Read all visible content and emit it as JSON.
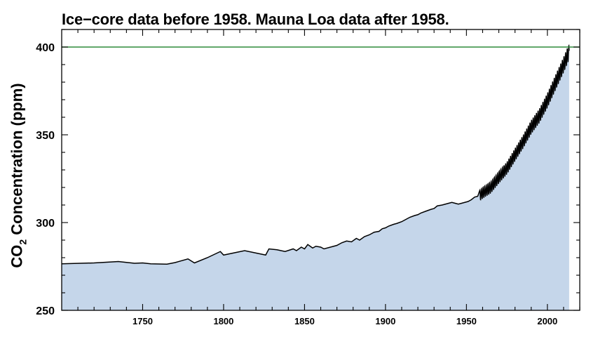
{
  "chart_data": {
    "type": "area",
    "title": "Ice−core data before 1958. Mauna Loa data after 1958.",
    "ylabel": {
      "prefix": "CO",
      "subscript": "2",
      "suffix": " Concentration (ppm)"
    },
    "xlabel": "",
    "xlim": [
      1700,
      2020
    ],
    "ylim": [
      250,
      410
    ],
    "xticks": [
      1750,
      1800,
      1850,
      1900,
      1950,
      2000
    ],
    "yticks": [
      250,
      300,
      350,
      400
    ],
    "reference_line": {
      "y": 400,
      "color": "#2e8b3a"
    },
    "fill_color": "#c5d6ea",
    "line_color": "#000000",
    "ice_core": {
      "x": [
        1700,
        1720,
        1735,
        1745,
        1750,
        1755,
        1765,
        1770,
        1778,
        1782,
        1790,
        1798,
        1800,
        1813,
        1826,
        1828,
        1833,
        1838,
        1843,
        1845,
        1848,
        1850,
        1852,
        1855,
        1857,
        1860,
        1862,
        1868,
        1870,
        1873,
        1876,
        1879,
        1882,
        1884,
        1887,
        1890,
        1893,
        1896,
        1898,
        1900,
        1902,
        1905,
        1907,
        1910,
        1912,
        1915,
        1918,
        1920,
        1922,
        1925,
        1928,
        1930,
        1932,
        1935,
        1937,
        1939,
        1941,
        1943,
        1945,
        1947,
        1949,
        1951,
        1953,
        1955,
        1957
      ],
      "y": [
        276.5,
        277.0,
        277.8,
        276.8,
        277.0,
        276.5,
        276.3,
        277.2,
        279.3,
        277.0,
        280.0,
        283.5,
        281.5,
        284.0,
        281.5,
        285.0,
        284.5,
        283.5,
        285.0,
        284.0,
        286.0,
        285.0,
        287.5,
        285.5,
        286.5,
        286.0,
        285.0,
        286.5,
        287.0,
        288.5,
        289.5,
        289.0,
        291.0,
        290.0,
        292.0,
        293.0,
        294.5,
        295.0,
        296.5,
        297.0,
        298.0,
        299.0,
        299.5,
        300.5,
        301.5,
        303.0,
        304.0,
        304.5,
        305.5,
        306.5,
        307.5,
        308.0,
        309.5,
        310.0,
        310.5,
        311.0,
        311.5,
        311.0,
        310.5,
        311.0,
        311.5,
        312.0,
        313.0,
        314.5,
        315.0
      ]
    },
    "mauna_loa": {
      "years": [
        1958,
        1960,
        1965,
        1970,
        1975,
        1980,
        1985,
        1990,
        1995,
        2000,
        2005,
        2010,
        2013
      ],
      "ppm": [
        315.3,
        316.9,
        320.0,
        325.7,
        331.1,
        338.7,
        346.1,
        354.4,
        360.8,
        369.6,
        379.8,
        389.9,
        396.5
      ],
      "seasonal_amplitude": 3.0
    }
  }
}
